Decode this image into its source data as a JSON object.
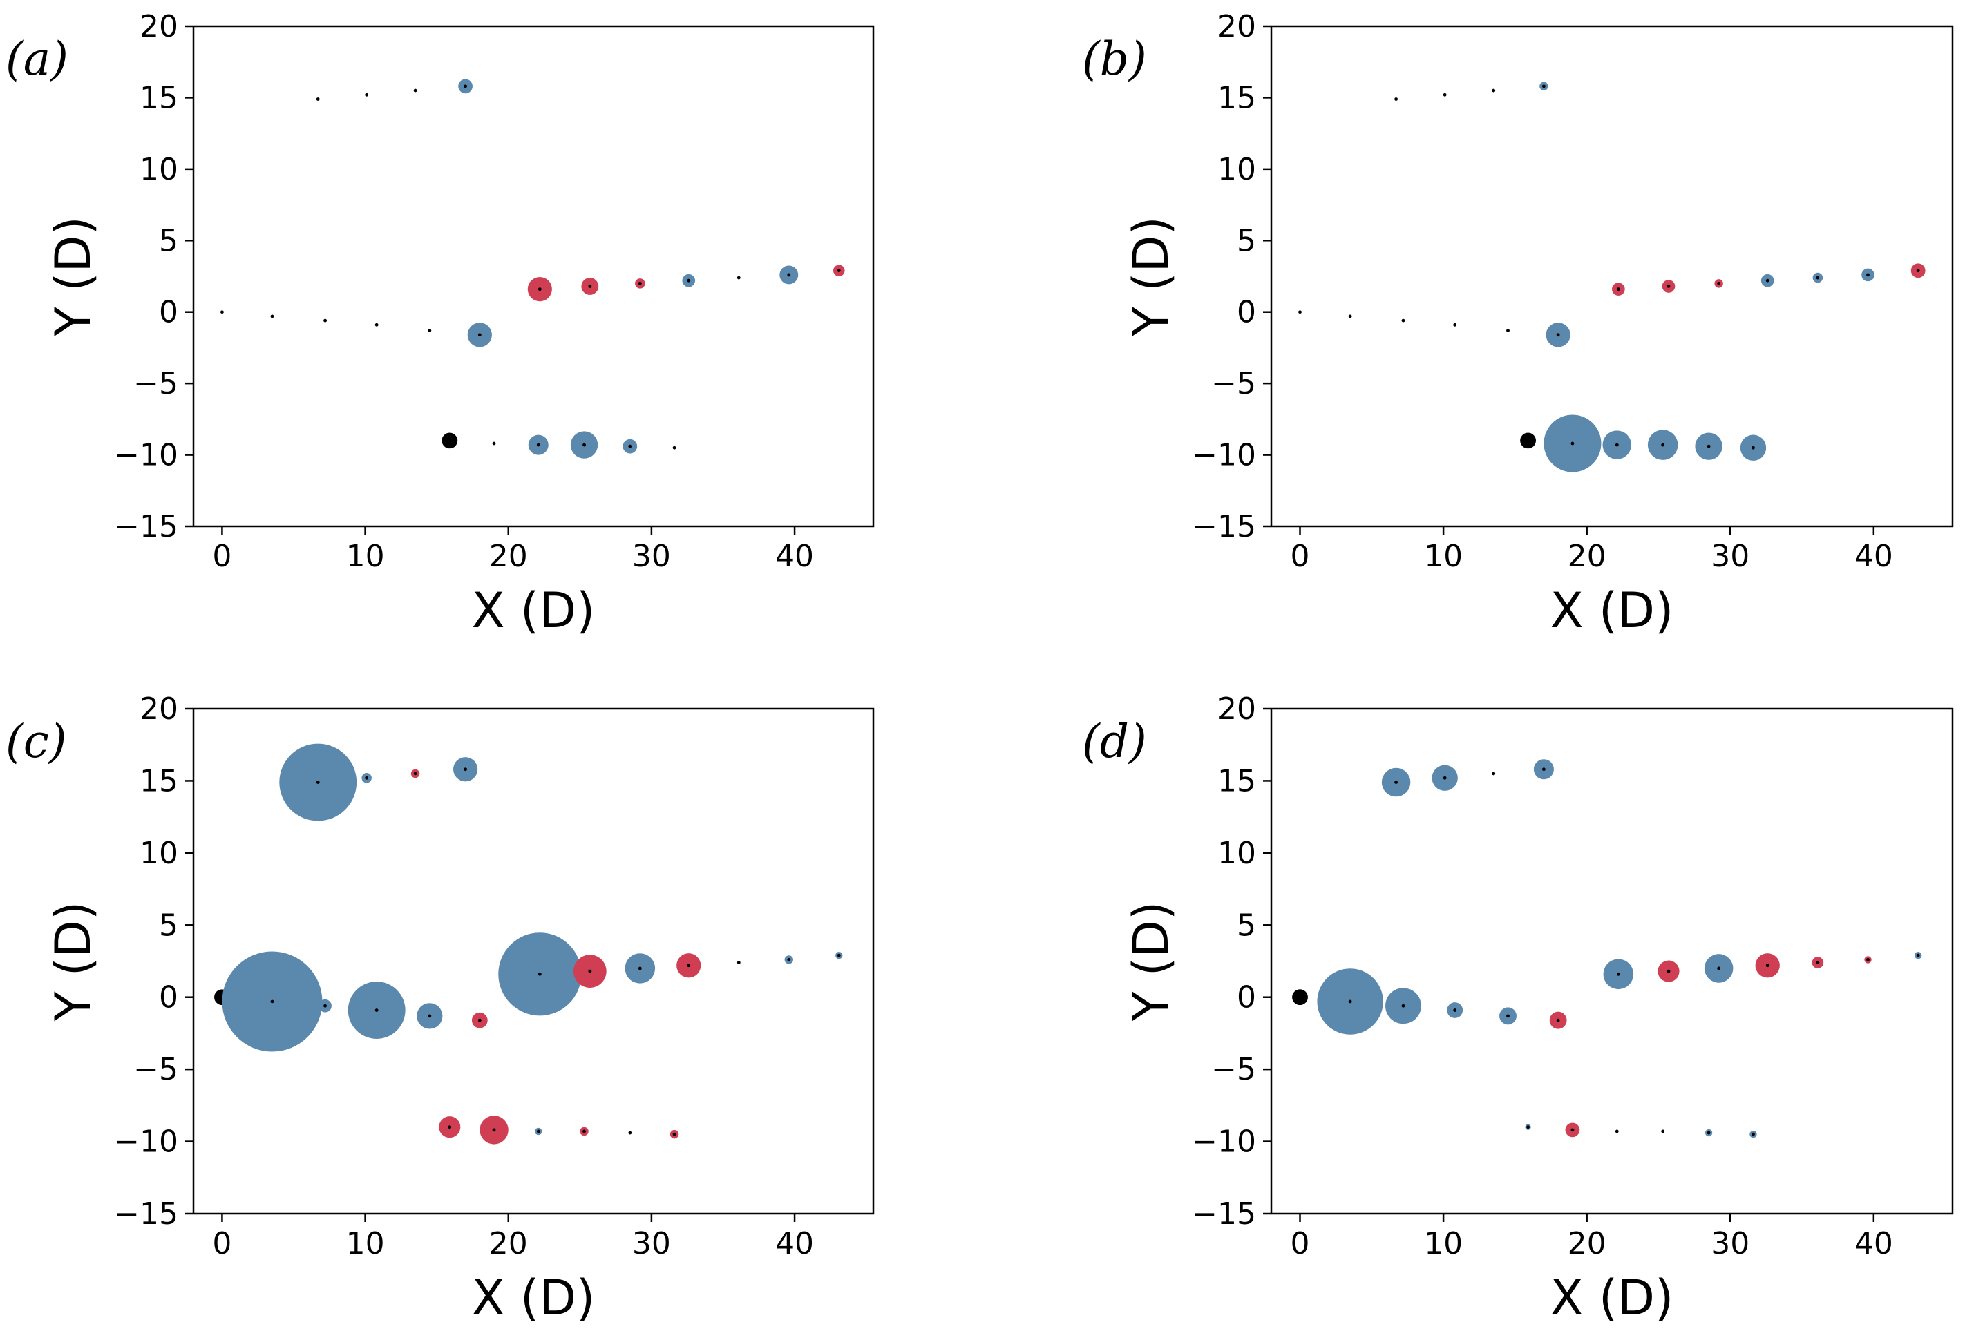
{
  "colors": {
    "positive": "#5b88ad",
    "negative": "#cf3e53",
    "reference": "#000000",
    "center": "#000000"
  },
  "chart_data": [
    {
      "type": "scatter",
      "panel_label": "(a)",
      "xlabel": "X (D)",
      "ylabel": "Y (D)",
      "xlim": [
        -2,
        45.5
      ],
      "ylim": [
        -15,
        20
      ],
      "xticks": [
        0,
        10,
        20,
        30,
        40
      ],
      "yticks": [
        -15,
        -10,
        -5,
        0,
        5,
        10,
        15,
        20
      ],
      "xtick_labels": [
        "0",
        "10",
        "20",
        "30",
        "40"
      ],
      "ytick_labels": [
        "−15",
        "−10",
        "−5",
        "0",
        "5",
        "10",
        "15",
        "20"
      ],
      "points": [
        {
          "x": 0,
          "y": 0,
          "r": 0,
          "sign": "none"
        },
        {
          "x": 3.5,
          "y": -0.3,
          "r": 0,
          "sign": "none"
        },
        {
          "x": 7.2,
          "y": -0.6,
          "r": 0,
          "sign": "none"
        },
        {
          "x": 10.8,
          "y": -0.9,
          "r": 0,
          "sign": "none"
        },
        {
          "x": 14.5,
          "y": -1.3,
          "r": 0,
          "sign": "none"
        },
        {
          "x": 18.0,
          "y": -1.6,
          "r": 0.85,
          "sign": "positive"
        },
        {
          "x": 22.2,
          "y": 1.6,
          "r": 0.85,
          "sign": "negative"
        },
        {
          "x": 25.7,
          "y": 1.8,
          "r": 0.6,
          "sign": "negative"
        },
        {
          "x": 29.2,
          "y": 2.0,
          "r": 0.35,
          "sign": "negative"
        },
        {
          "x": 32.6,
          "y": 2.2,
          "r": 0.45,
          "sign": "positive"
        },
        {
          "x": 36.1,
          "y": 2.4,
          "r": 0,
          "sign": "none"
        },
        {
          "x": 39.6,
          "y": 2.6,
          "r": 0.65,
          "sign": "positive"
        },
        {
          "x": 43.1,
          "y": 2.9,
          "r": 0.4,
          "sign": "negative"
        },
        {
          "x": 6.7,
          "y": 14.9,
          "r": 0,
          "sign": "none"
        },
        {
          "x": 10.1,
          "y": 15.2,
          "r": 0,
          "sign": "none"
        },
        {
          "x": 13.5,
          "y": 15.5,
          "r": 0,
          "sign": "none"
        },
        {
          "x": 17.0,
          "y": 15.8,
          "r": 0.5,
          "sign": "positive"
        },
        {
          "x": 15.9,
          "y": -9.0,
          "r": 0.55,
          "sign": "reference"
        },
        {
          "x": 19.0,
          "y": -9.2,
          "r": 0,
          "sign": "none"
        },
        {
          "x": 22.1,
          "y": -9.3,
          "r": 0.7,
          "sign": "positive"
        },
        {
          "x": 25.3,
          "y": -9.3,
          "r": 0.95,
          "sign": "positive"
        },
        {
          "x": 28.5,
          "y": -9.4,
          "r": 0.5,
          "sign": "positive"
        },
        {
          "x": 31.6,
          "y": -9.5,
          "r": 0,
          "sign": "none"
        }
      ]
    },
    {
      "type": "scatter",
      "panel_label": "(b)",
      "xlabel": "X (D)",
      "ylabel": "Y (D)",
      "xlim": [
        -2,
        45.5
      ],
      "ylim": [
        -15,
        20
      ],
      "xticks": [
        0,
        10,
        20,
        30,
        40
      ],
      "yticks": [
        -15,
        -10,
        -5,
        0,
        5,
        10,
        15,
        20
      ],
      "xtick_labels": [
        "0",
        "10",
        "20",
        "30",
        "40"
      ],
      "ytick_labels": [
        "−15",
        "−10",
        "−5",
        "0",
        "5",
        "10",
        "15",
        "20"
      ],
      "points": [
        {
          "x": 0,
          "y": 0,
          "r": 0,
          "sign": "none"
        },
        {
          "x": 3.5,
          "y": -0.3,
          "r": 0,
          "sign": "none"
        },
        {
          "x": 7.2,
          "y": -0.6,
          "r": 0,
          "sign": "none"
        },
        {
          "x": 10.8,
          "y": -0.9,
          "r": 0,
          "sign": "none"
        },
        {
          "x": 14.5,
          "y": -1.3,
          "r": 0,
          "sign": "none"
        },
        {
          "x": 18.0,
          "y": -1.6,
          "r": 0.85,
          "sign": "positive"
        },
        {
          "x": 22.2,
          "y": 1.6,
          "r": 0.45,
          "sign": "negative"
        },
        {
          "x": 25.7,
          "y": 1.8,
          "r": 0.45,
          "sign": "negative"
        },
        {
          "x": 29.2,
          "y": 2.0,
          "r": 0.3,
          "sign": "negative"
        },
        {
          "x": 32.6,
          "y": 2.2,
          "r": 0.45,
          "sign": "positive"
        },
        {
          "x": 36.1,
          "y": 2.4,
          "r": 0.35,
          "sign": "positive"
        },
        {
          "x": 39.6,
          "y": 2.6,
          "r": 0.45,
          "sign": "positive"
        },
        {
          "x": 43.1,
          "y": 2.9,
          "r": 0.5,
          "sign": "negative"
        },
        {
          "x": 6.7,
          "y": 14.9,
          "r": 0,
          "sign": "none"
        },
        {
          "x": 10.1,
          "y": 15.2,
          "r": 0,
          "sign": "none"
        },
        {
          "x": 13.5,
          "y": 15.5,
          "r": 0,
          "sign": "none"
        },
        {
          "x": 17.0,
          "y": 15.8,
          "r": 0.3,
          "sign": "positive"
        },
        {
          "x": 15.9,
          "y": -9.0,
          "r": 0.55,
          "sign": "reference"
        },
        {
          "x": 19.0,
          "y": -9.2,
          "r": 2.0,
          "sign": "positive"
        },
        {
          "x": 22.1,
          "y": -9.3,
          "r": 1.0,
          "sign": "positive"
        },
        {
          "x": 25.3,
          "y": -9.3,
          "r": 1.05,
          "sign": "positive"
        },
        {
          "x": 28.5,
          "y": -9.4,
          "r": 0.95,
          "sign": "positive"
        },
        {
          "x": 31.6,
          "y": -9.5,
          "r": 0.9,
          "sign": "positive"
        }
      ]
    },
    {
      "type": "scatter",
      "panel_label": "(c)",
      "xlabel": "X (D)",
      "ylabel": "Y (D)",
      "xlim": [
        -2,
        45.5
      ],
      "ylim": [
        -15,
        20
      ],
      "xticks": [
        0,
        10,
        20,
        30,
        40
      ],
      "yticks": [
        -15,
        -10,
        -5,
        0,
        5,
        10,
        15,
        20
      ],
      "xtick_labels": [
        "0",
        "10",
        "20",
        "30",
        "40"
      ],
      "ytick_labels": [
        "−15",
        "−10",
        "−5",
        "0",
        "5",
        "10",
        "15",
        "20"
      ],
      "points": [
        {
          "x": 0,
          "y": 0,
          "r": 0.55,
          "sign": "reference"
        },
        {
          "x": 3.5,
          "y": -0.3,
          "r": 3.5,
          "sign": "positive"
        },
        {
          "x": 7.2,
          "y": -0.6,
          "r": 0.45,
          "sign": "positive"
        },
        {
          "x": 10.8,
          "y": -0.9,
          "r": 2.0,
          "sign": "positive"
        },
        {
          "x": 14.5,
          "y": -1.3,
          "r": 0.9,
          "sign": "positive"
        },
        {
          "x": 18.0,
          "y": -1.6,
          "r": 0.55,
          "sign": "negative"
        },
        {
          "x": 22.2,
          "y": 1.6,
          "r": 2.9,
          "sign": "positive"
        },
        {
          "x": 25.7,
          "y": 1.8,
          "r": 1.15,
          "sign": "negative"
        },
        {
          "x": 29.2,
          "y": 2.0,
          "r": 1.05,
          "sign": "positive"
        },
        {
          "x": 32.6,
          "y": 2.2,
          "r": 0.85,
          "sign": "negative"
        },
        {
          "x": 36.1,
          "y": 2.4,
          "r": 0,
          "sign": "none"
        },
        {
          "x": 39.6,
          "y": 2.6,
          "r": 0.3,
          "sign": "positive"
        },
        {
          "x": 43.1,
          "y": 2.9,
          "r": 0.25,
          "sign": "positive"
        },
        {
          "x": 6.7,
          "y": 14.9,
          "r": 2.7,
          "sign": "positive"
        },
        {
          "x": 10.1,
          "y": 15.2,
          "r": 0.35,
          "sign": "positive"
        },
        {
          "x": 13.5,
          "y": 15.5,
          "r": 0.3,
          "sign": "negative"
        },
        {
          "x": 17.0,
          "y": 15.8,
          "r": 0.85,
          "sign": "positive"
        },
        {
          "x": 15.9,
          "y": -9.0,
          "r": 0.75,
          "sign": "negative"
        },
        {
          "x": 19.0,
          "y": -9.2,
          "r": 1.0,
          "sign": "negative"
        },
        {
          "x": 22.1,
          "y": -9.3,
          "r": 0.25,
          "sign": "positive"
        },
        {
          "x": 25.3,
          "y": -9.3,
          "r": 0.3,
          "sign": "negative"
        },
        {
          "x": 28.5,
          "y": -9.4,
          "r": 0,
          "sign": "none"
        },
        {
          "x": 31.6,
          "y": -9.5,
          "r": 0.3,
          "sign": "negative"
        }
      ]
    },
    {
      "type": "scatter",
      "panel_label": "(d)",
      "xlabel": "X (D)",
      "ylabel": "Y (D)",
      "xlim": [
        -2,
        45.5
      ],
      "ylim": [
        -15,
        20
      ],
      "xticks": [
        0,
        10,
        20,
        30,
        40
      ],
      "yticks": [
        -15,
        -10,
        -5,
        0,
        5,
        10,
        15,
        20
      ],
      "xtick_labels": [
        "0",
        "10",
        "20",
        "30",
        "40"
      ],
      "ytick_labels": [
        "−15",
        "−10",
        "−5",
        "0",
        "5",
        "10",
        "15",
        "20"
      ],
      "points": [
        {
          "x": 0,
          "y": 0,
          "r": 0.55,
          "sign": "reference"
        },
        {
          "x": 3.5,
          "y": -0.3,
          "r": 2.3,
          "sign": "positive"
        },
        {
          "x": 7.2,
          "y": -0.6,
          "r": 1.25,
          "sign": "positive"
        },
        {
          "x": 10.8,
          "y": -0.9,
          "r": 0.55,
          "sign": "positive"
        },
        {
          "x": 14.5,
          "y": -1.3,
          "r": 0.6,
          "sign": "positive"
        },
        {
          "x": 18.0,
          "y": -1.6,
          "r": 0.6,
          "sign": "negative"
        },
        {
          "x": 22.2,
          "y": 1.6,
          "r": 1.05,
          "sign": "positive"
        },
        {
          "x": 25.7,
          "y": 1.8,
          "r": 0.75,
          "sign": "negative"
        },
        {
          "x": 29.2,
          "y": 2.0,
          "r": 1.0,
          "sign": "positive"
        },
        {
          "x": 32.6,
          "y": 2.2,
          "r": 0.85,
          "sign": "negative"
        },
        {
          "x": 36.1,
          "y": 2.4,
          "r": 0.4,
          "sign": "negative"
        },
        {
          "x": 39.6,
          "y": 2.6,
          "r": 0.25,
          "sign": "negative"
        },
        {
          "x": 43.1,
          "y": 2.9,
          "r": 0.25,
          "sign": "positive"
        },
        {
          "x": 6.7,
          "y": 14.9,
          "r": 1.0,
          "sign": "positive"
        },
        {
          "x": 10.1,
          "y": 15.2,
          "r": 0.9,
          "sign": "positive"
        },
        {
          "x": 13.5,
          "y": 15.5,
          "r": 0,
          "sign": "none"
        },
        {
          "x": 17.0,
          "y": 15.8,
          "r": 0.7,
          "sign": "positive"
        },
        {
          "x": 15.9,
          "y": -9.0,
          "r": 0.2,
          "sign": "positive"
        },
        {
          "x": 19.0,
          "y": -9.2,
          "r": 0.5,
          "sign": "negative"
        },
        {
          "x": 22.1,
          "y": -9.3,
          "r": 0,
          "sign": "none"
        },
        {
          "x": 25.3,
          "y": -9.3,
          "r": 0,
          "sign": "none"
        },
        {
          "x": 28.5,
          "y": -9.4,
          "r": 0.25,
          "sign": "positive"
        },
        {
          "x": 31.6,
          "y": -9.5,
          "r": 0.25,
          "sign": "positive"
        }
      ]
    }
  ]
}
